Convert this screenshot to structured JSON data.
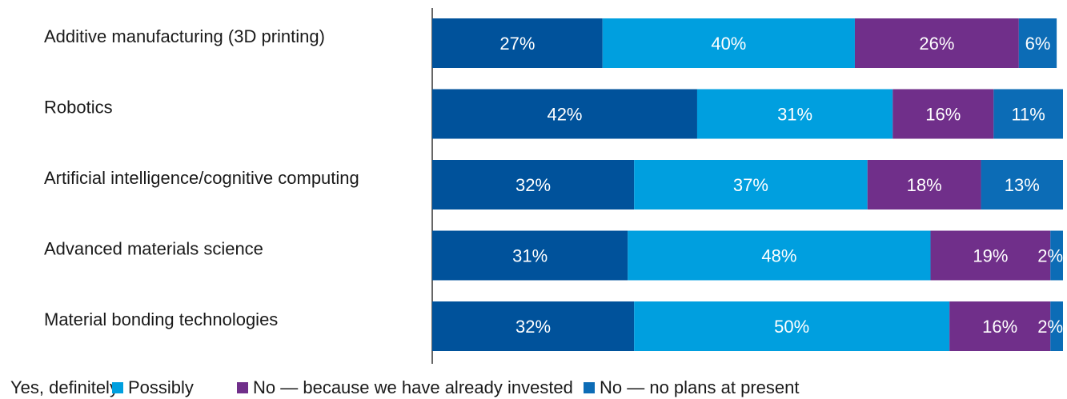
{
  "chart_data": {
    "type": "bar",
    "orientation": "horizontal",
    "stacked": true,
    "categories": [
      "Additive manufacturing (3D printing)",
      "Robotics",
      "Artificial intelligence/cognitive computing",
      "Advanced materials science",
      "Material bonding technologies"
    ],
    "series": [
      {
        "name": "Yes, definitely",
        "color": "#00529b",
        "values": [
          27,
          42,
          32,
          31,
          32
        ],
        "labels": [
          "27%",
          "42%",
          "32%",
          "31%",
          "32%"
        ]
      },
      {
        "name": "Possibly",
        "color": "#009fdf",
        "values": [
          40,
          31,
          37,
          48,
          50
        ],
        "labels": [
          "40%",
          "31%",
          "37%",
          "48%",
          "50%"
        ]
      },
      {
        "name": "No — because we have already invested",
        "color": "#702f8a",
        "values": [
          26,
          16,
          18,
          19,
          16
        ],
        "labels": [
          "26%",
          "16%",
          "18%",
          "19%",
          "16%"
        ]
      },
      {
        "name": "No — no plans at present",
        "color": "#0c6cb6",
        "values": [
          6,
          11,
          13,
          2,
          2
        ],
        "labels": [
          "6%",
          "11%",
          "13%",
          "2%",
          "2%"
        ]
      }
    ],
    "xlim": [
      0,
      100
    ],
    "grid": false,
    "legend_position": "bottom"
  }
}
